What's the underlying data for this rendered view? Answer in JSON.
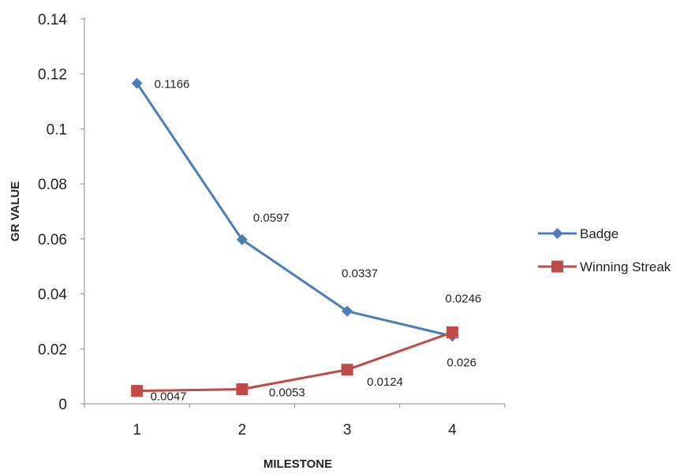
{
  "chart_data": {
    "type": "line",
    "xlabel": "MILESTONE",
    "ylabel": "GR VALUE",
    "categories": [
      "1",
      "2",
      "3",
      "4"
    ],
    "ylim": [
      0,
      0.14
    ],
    "yticks": [
      "0",
      "0.02",
      "0.04",
      "0.06",
      "0.08",
      "0.1",
      "0.12",
      "0.14"
    ],
    "grid": false,
    "legend_position": "right",
    "series": [
      {
        "name": "Badge",
        "color": "#4a7ebb",
        "marker": "diamond",
        "values": [
          0.1166,
          0.0597,
          0.0337,
          0.0246
        ],
        "labels": [
          "0.1166",
          "0.0597",
          "0.0337",
          "0.0246"
        ]
      },
      {
        "name": "Winning Streak",
        "color": "#be4b48",
        "marker": "square",
        "values": [
          0.0047,
          0.0053,
          0.0124,
          0.026
        ],
        "labels": [
          "0.0047",
          "0.0053",
          "0.0124",
          "0.026"
        ]
      }
    ]
  }
}
